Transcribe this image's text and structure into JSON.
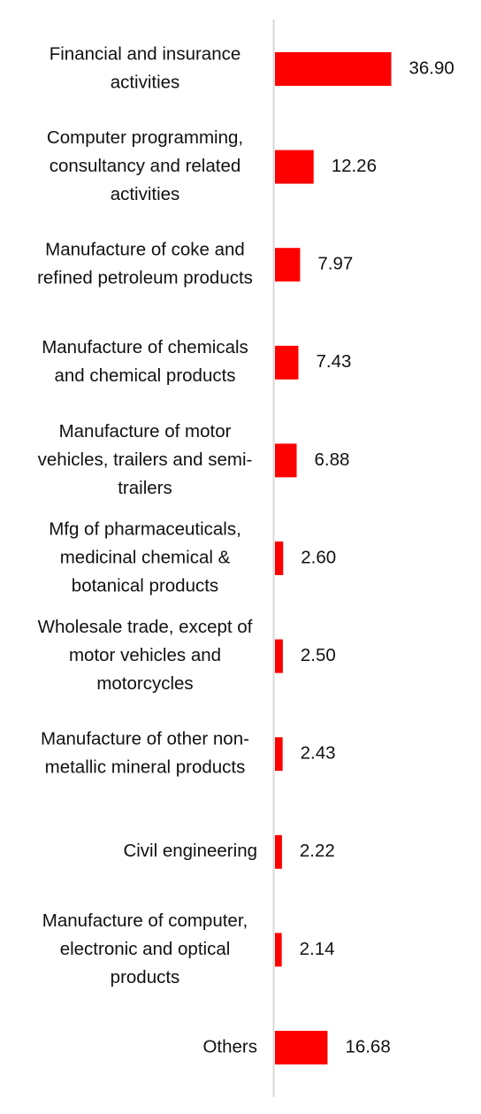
{
  "chart_data": {
    "type": "bar",
    "orientation": "horizontal",
    "categories": [
      [
        "Financial and insurance",
        "activities"
      ],
      [
        "Computer programming,",
        "consultancy and related",
        "activities"
      ],
      [
        "Manufacture of coke and",
        "refined petroleum products"
      ],
      [
        "Manufacture of chemicals",
        "and chemical products"
      ],
      [
        "Manufacture of motor",
        "vehicles, trailers and semi-",
        "trailers"
      ],
      [
        "Mfg of pharmaceuticals,",
        "medicinal chemical &",
        "botanical products"
      ],
      [
        "Wholesale trade, except of",
        "motor vehicles and",
        "motorcycles"
      ],
      [
        "Manufacture of other non-",
        "metallic mineral products"
      ],
      [
        "Civil engineering"
      ],
      [
        "Manufacture of computer,",
        "electronic and optical",
        "products"
      ],
      [
        "Others"
      ]
    ],
    "values": [
      36.9,
      12.26,
      7.97,
      7.43,
      6.88,
      2.6,
      2.5,
      2.43,
      2.22,
      2.14,
      16.68
    ],
    "value_labels": [
      "36.90",
      "12.26",
      "7.97",
      "7.43",
      "6.88",
      "2.60",
      "2.50",
      "2.43",
      "2.22",
      "2.14",
      "16.68"
    ],
    "bar_color": "#ff0000",
    "axis_color": "#d9d9d9",
    "grid": false,
    "legend": "none"
  }
}
